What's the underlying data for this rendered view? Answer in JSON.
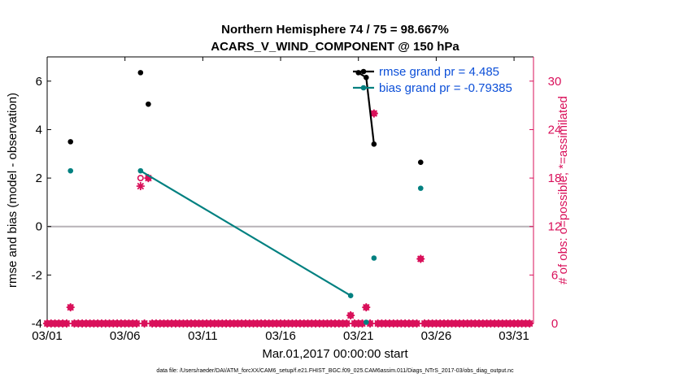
{
  "chart_data": {
    "type": "scatter",
    "title": "Northern Hemisphere 74 / 75 = 98.667%",
    "subtitle": "ACARS_V_WIND_COMPONENT @ 150 hPa",
    "xlabel": "Mar.01,2017 00:00:00 start",
    "ylabel_left": "rmse and bias (model - observation)",
    "ylabel_right": "# of obs: o=possible; *=assimilated",
    "footer": "data file: /Users/raeder/DAI/ATM_forcXX/CAM6_setup/f.e21.FHIST_BGC.f09_025.CAM6assim.011/Diags_NTrS_2017-03/obs_diag_output.nc",
    "x_ticks": [
      {
        "day": 1,
        "label": "03/01"
      },
      {
        "day": 6,
        "label": "03/06"
      },
      {
        "day": 11,
        "label": "03/11"
      },
      {
        "day": 16,
        "label": "03/16"
      },
      {
        "day": 21,
        "label": "03/21"
      },
      {
        "day": 26,
        "label": "03/26"
      },
      {
        "day": 31,
        "label": "03/31"
      }
    ],
    "xlim": [
      1,
      32.25
    ],
    "ylim_left": [
      -4,
      7
    ],
    "yticks_left": [
      -4,
      -2,
      0,
      2,
      4,
      6
    ],
    "ylim_right": [
      0,
      33
    ],
    "yticks_right": [
      0,
      6,
      12,
      18,
      24,
      30
    ],
    "grid": false,
    "zero_line": true,
    "legend": "top-right",
    "colors": {
      "rmse": "#000000",
      "bias": "#008080",
      "obs": "#d9105a",
      "zero": "#b7b2b7"
    },
    "series": [
      {
        "name": "rmse grand pr = 4.485",
        "axis": "left",
        "points": [
          {
            "day": 2.5,
            "value": 3.5
          },
          {
            "day": 7.0,
            "value": 6.35
          },
          {
            "day": 7.5,
            "value": 5.05
          },
          {
            "day": 21.0,
            "value": 6.35
          },
          {
            "day": 21.5,
            "value": 6.15
          },
          {
            "day": 22.0,
            "value": 3.4
          },
          {
            "day": 25.0,
            "value": 2.65
          }
        ],
        "segments": [
          [
            3,
            4,
            5
          ]
        ]
      },
      {
        "name": "bias grand pr = -0.79385",
        "axis": "left",
        "points": [
          {
            "day": 2.5,
            "value": 2.3
          },
          {
            "day": 7.0,
            "value": 2.3
          },
          {
            "day": 20.5,
            "value": -2.85
          },
          {
            "day": 21.5,
            "value": -3.95
          },
          {
            "day": 22.0,
            "value": -1.3
          },
          {
            "day": 25.0,
            "value": 1.58
          }
        ],
        "segments": [
          [
            1,
            2
          ]
        ]
      }
    ],
    "obs_possible_nonzero": [
      {
        "day": 2.5,
        "count": 2
      },
      {
        "day": 7.0,
        "count": 18
      },
      {
        "day": 7.5,
        "count": 18
      },
      {
        "day": 20.5,
        "count": 1
      },
      {
        "day": 21.5,
        "count": 2
      },
      {
        "day": 22.0,
        "count": 26
      },
      {
        "day": 25.0,
        "count": 8
      }
    ],
    "obs_assimilated_nonzero": [
      {
        "day": 2.5,
        "count": 2
      },
      {
        "day": 7.0,
        "count": 17
      },
      {
        "day": 7.5,
        "count": 18
      },
      {
        "day": 20.5,
        "count": 1
      },
      {
        "day": 21.5,
        "count": 2
      },
      {
        "day": 22.0,
        "count": 26
      },
      {
        "day": 25.0,
        "count": 8
      }
    ],
    "obs_time_step_days": 0.25,
    "obs_day_range": [
      1.0,
      32.0
    ]
  }
}
